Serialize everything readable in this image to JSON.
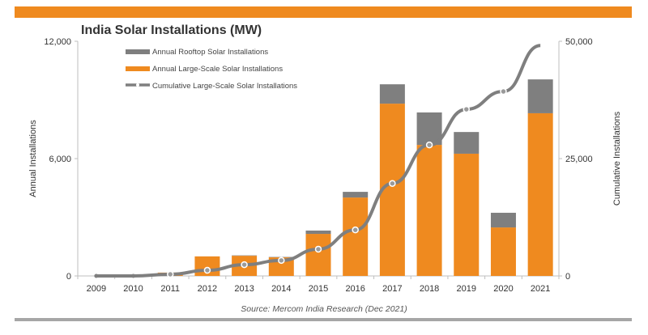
{
  "chart_data": {
    "type": "bar",
    "title": "India Solar Installations (MW)",
    "ylabel": "Annual Installations",
    "y2label": "Cumulative Installations",
    "source": "Source: Mercom India Research (Dec 2021)",
    "categories": [
      "2009",
      "2010",
      "2011",
      "2012",
      "2013",
      "2014",
      "2015",
      "2016",
      "2017",
      "2018",
      "2019",
      "2020",
      "2021"
    ],
    "ylim": [
      0,
      12000
    ],
    "y2lim": [
      0,
      50000
    ],
    "yticks": [
      "0",
      "6,000",
      "12,000"
    ],
    "y2ticks": [
      "0",
      "25,000",
      "50,000"
    ],
    "legend_placement": "top-left",
    "series": [
      {
        "name": "Annual Large-Scale Solar Installations",
        "type": "bar",
        "stack": true,
        "color": "#ef8a1f",
        "values": [
          0,
          0,
          170,
          1000,
          1030,
          950,
          2150,
          4010,
          8810,
          6700,
          6250,
          2480,
          8320
        ]
      },
      {
        "name": "Annual Rooftop Solar Installations",
        "type": "bar",
        "stack": true,
        "color": "#7f7f7f",
        "values": [
          0,
          0,
          0,
          0,
          20,
          20,
          170,
          290,
          990,
          1660,
          1110,
          750,
          1730
        ]
      },
      {
        "name": "Cumulative Large-Scale Solar Installations",
        "type": "line",
        "axis": "right",
        "color": "#7f7f7f",
        "values": [
          0,
          0,
          350,
          1200,
          2400,
          3300,
          5700,
          9800,
          19700,
          27900,
          35500,
          39300,
          49100
        ]
      }
    ]
  }
}
